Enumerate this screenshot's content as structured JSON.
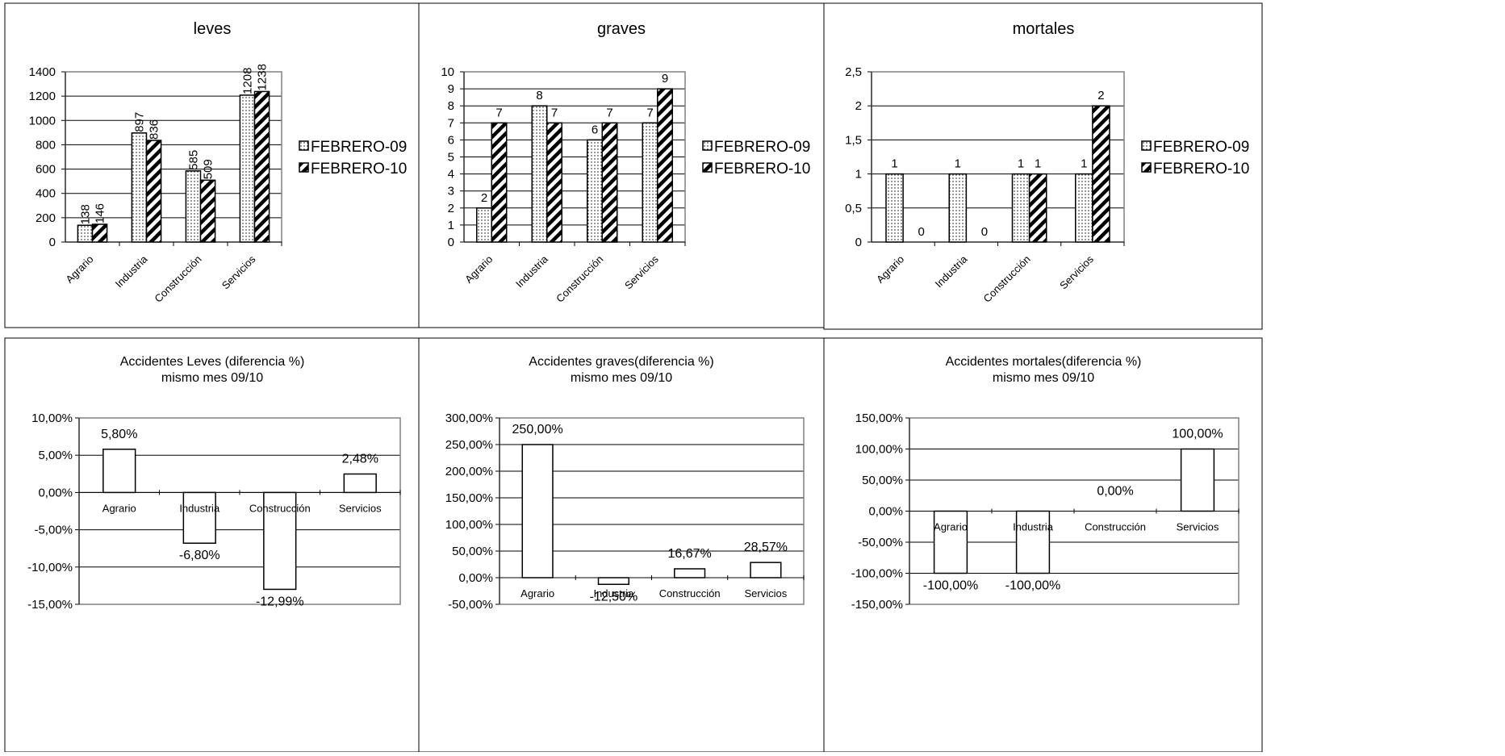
{
  "legend_labels": [
    "FEBRERO-09",
    "FEBRERO-10"
  ],
  "chart_data": [
    {
      "type": "bar",
      "title": "leves",
      "categories": [
        "Agrario",
        "Industria",
        "Construcción",
        "Servicios"
      ],
      "series": [
        {
          "name": "FEBRERO-09",
          "values": [
            138,
            897,
            585,
            1208
          ]
        },
        {
          "name": "FEBRERO-10",
          "values": [
            146,
            836,
            509,
            1238
          ]
        }
      ],
      "ylim": [
        0,
        1400
      ],
      "yticks": [
        "0",
        "200",
        "400",
        "600",
        "800",
        "1000",
        "1200",
        "1400"
      ],
      "data_labels": [
        [
          "138",
          "897",
          "585",
          "1208"
        ],
        [
          "146",
          "836",
          "509",
          "1238"
        ]
      ],
      "legend": "right",
      "grid": true
    },
    {
      "type": "bar",
      "title": "graves",
      "categories": [
        "Agrario",
        "Industria",
        "Construcción",
        "Servicios"
      ],
      "series": [
        {
          "name": "FEBRERO-09",
          "values": [
            2,
            8,
            6,
            7
          ]
        },
        {
          "name": "FEBRERO-10",
          "values": [
            7,
            7,
            7,
            9
          ]
        }
      ],
      "ylim": [
        0,
        10
      ],
      "yticks": [
        "0",
        "1",
        "2",
        "3",
        "4",
        "5",
        "6",
        "7",
        "8",
        "9",
        "10"
      ],
      "data_labels": [
        [
          "2",
          "8",
          "6",
          "7"
        ],
        [
          "7",
          "7",
          "7",
          "9"
        ]
      ],
      "legend": "right",
      "grid": true
    },
    {
      "type": "bar",
      "title": "mortales",
      "categories": [
        "Agrario",
        "Industria",
        "Construcción",
        "Servicios"
      ],
      "series": [
        {
          "name": "FEBRERO-09",
          "values": [
            1,
            1,
            1,
            1
          ]
        },
        {
          "name": "FEBRERO-10",
          "values": [
            0,
            0,
            1,
            2
          ]
        }
      ],
      "ylim": [
        0,
        2.5
      ],
      "yticks": [
        "0",
        "0,5",
        "1",
        "1,5",
        "2",
        "2,5"
      ],
      "data_labels": [
        [
          "1",
          "1",
          "1",
          "1"
        ],
        [
          "0",
          "0",
          "1",
          "2"
        ]
      ],
      "legend": "right",
      "grid": true
    },
    {
      "type": "bar",
      "title": "Accidentes Leves (diferencia %)",
      "subtitle": "mismo mes 09/10",
      "categories": [
        "Agrario",
        "Industria",
        "Construcción",
        "Servicios"
      ],
      "values": [
        5.8,
        -6.8,
        -12.99,
        2.48
      ],
      "data_labels": [
        "5,80%",
        "-6,80%",
        "-12,99%",
        "2,48%"
      ],
      "ylim": [
        -15,
        10
      ],
      "yticks": [
        "-15,00%",
        "-10,00%",
        "-5,00%",
        "0,00%",
        "5,00%",
        "10,00%"
      ],
      "grid": true
    },
    {
      "type": "bar",
      "title": "Accidentes graves(diferencia %)",
      "subtitle": "mismo mes 09/10",
      "categories": [
        "Agrario",
        "Industria",
        "Construcción",
        "Servicios"
      ],
      "values": [
        250.0,
        -12.5,
        16.67,
        28.57
      ],
      "data_labels": [
        "250,00%",
        "-12,50%",
        "16,67%",
        "28,57%"
      ],
      "ylim": [
        -50,
        300
      ],
      "yticks": [
        "-50,00%",
        "0,00%",
        "50,00%",
        "100,00%",
        "150,00%",
        "200,00%",
        "250,00%",
        "300,00%"
      ],
      "grid": true
    },
    {
      "type": "bar",
      "title": "Accidentes mortales(diferencia %)",
      "subtitle": "mismo mes 09/10",
      "categories": [
        "Agrario",
        "Industria",
        "Construcción",
        "Servicios"
      ],
      "values": [
        -100.0,
        -100.0,
        0.0,
        100.0
      ],
      "data_labels": [
        "-100,00%",
        "-100,00%",
        "0,00%",
        "100,00%"
      ],
      "ylim": [
        -150,
        150
      ],
      "yticks": [
        "-150,00%",
        "-100,00%",
        "-50,00%",
        "0,00%",
        "50,00%",
        "100,00%",
        "150,00%"
      ],
      "grid": true
    }
  ]
}
